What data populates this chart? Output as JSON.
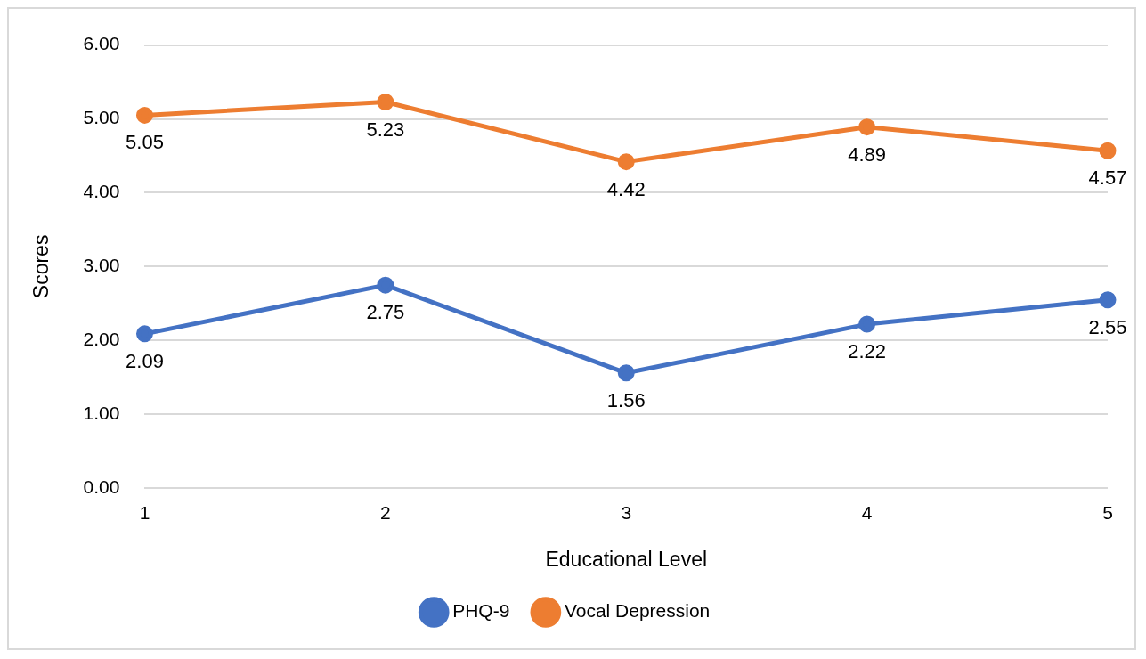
{
  "chart_data": {
    "type": "line",
    "xlabel": "Educational Level",
    "ylabel": "Scores",
    "categories": [
      "1",
      "2",
      "3",
      "4",
      "5"
    ],
    "series": [
      {
        "name": "PHQ-9",
        "color": "#4472c4",
        "values": [
          2.09,
          2.75,
          1.56,
          2.22,
          2.55
        ]
      },
      {
        "name": "Vocal Depression",
        "color": "#ed7d31",
        "values": [
          5.05,
          5.23,
          4.42,
          4.89,
          4.57
        ]
      }
    ],
    "ylim": [
      0,
      6
    ],
    "yticks": [
      {
        "value": 0,
        "label": "0.00"
      },
      {
        "value": 1,
        "label": "1.00"
      },
      {
        "value": 2,
        "label": "2.00"
      },
      {
        "value": 3,
        "label": "3.00"
      },
      {
        "value": 4,
        "label": "4.00"
      },
      {
        "value": 5,
        "label": "5.00"
      },
      {
        "value": 6,
        "label": "6.00"
      }
    ],
    "grid": "y",
    "legend": "bottom",
    "marker": "circle",
    "line_style": "solid",
    "data_labels": true
  }
}
